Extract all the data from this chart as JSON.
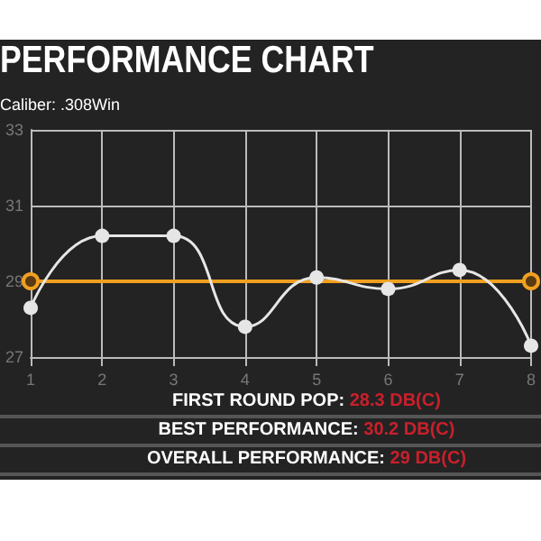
{
  "chart_data": {
    "type": "line",
    "title": "PERFORMANCE CHART",
    "subtitle": "Caliber: .308Win",
    "x": [
      1,
      2,
      3,
      4,
      5,
      6,
      7,
      8
    ],
    "series": [
      {
        "color": "#e6e6e6",
        "values": [
          28.3,
          30.2,
          30.2,
          27.8,
          29.1,
          28.8,
          29.3,
          27.3
        ]
      },
      {
        "color": "#f0a020",
        "x": [
          1,
          8
        ],
        "values": [
          29,
          29
        ]
      }
    ],
    "xlim": [
      1,
      8
    ],
    "xticks": [
      1,
      2,
      3,
      4,
      5,
      6,
      7,
      8
    ],
    "ylim": [
      27,
      33
    ],
    "yticks": [
      27,
      29,
      31,
      33
    ],
    "grid": true,
    "marker": "circle",
    "line_style": "solid",
    "annotations": [
      "FIRST ROUND POP: 28.3 DB(C)",
      "BEST PERFORMANCE: 30.2 DB(C)",
      "OVERALL PERFORMANCE: 29 DB(C)"
    ]
  }
}
